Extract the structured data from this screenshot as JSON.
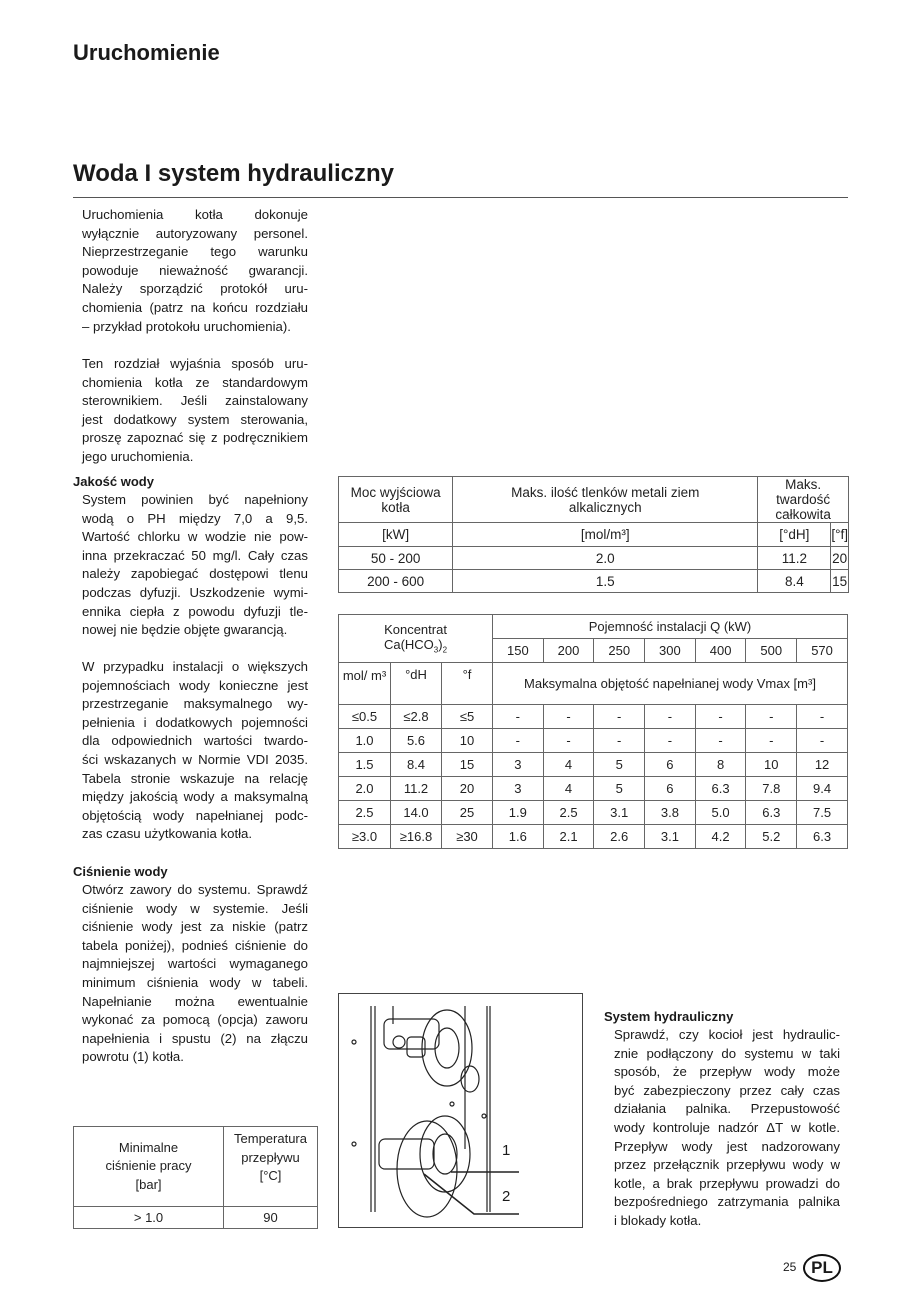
{
  "header": {
    "section_title": "Uruchomienie",
    "page_title": "Woda I system hydrauliczny"
  },
  "left": {
    "intro": [
      "Uruchomienia kotła dokonuje",
      "wyłącznie autoryzowany personel.",
      "Nieprzestrzeganie tego warunku",
      "powoduje nieważność gwarancji.",
      "Należy sporządzić protokół uru-",
      "chomienia (patrz na końcu rozdziału",
      "– przykład protokołu uruchomienia)."
    ],
    "intro2": [
      "Ten rozdział wyjaśnia sposób uru-",
      "chomienia kotła ze standardowym",
      "sterownikiem. Jeśli zainstalowany",
      "jest dodatkowy system sterowania,",
      "proszę zapoznać się z podręcznikiem",
      "jego uruchomienia."
    ],
    "water_quality_heading": "Jakość wody",
    "water_quality": [
      "System powinien być napełniony",
      "wodą o PH między 7,0 a 9,5.",
      "Wartość chlorku w wodzie nie pow-",
      "inna przekraczać 50 mg/l. Cały czas",
      "należy zapobiegać dostępowi tlenu",
      "podczas dyfuzji. Uszkodzenie wymi-",
      "ennika ciepła z powodu dyfuzji tle-",
      "nowej nie będzie objęte gwarancją."
    ],
    "water_quality2": [
      "W przypadku instalacji o większych",
      "pojemnościach wody konieczne jest",
      "przestrzeganie maksymalnego wy-",
      "pełnienia i dodatkowych pojemności",
      "dla odpowiednich wartości twardo-",
      "ści wskazanych w Normie VDI 2035.",
      "Tabela stronie wskazuje na relację",
      "między jakością wody a maksymalną",
      "objętością wody napełnianej podc-",
      "zas czasu użytkowania kotła."
    ],
    "pressure_heading": "Ciśnienie wody",
    "pressure": [
      "Otwórz zawory do systemu. Sprawdź",
      "ciśnienie wody w systemie. Jeśli",
      "ciśnienie wody jest za niskie (patrz",
      "tabela poniżej), podnieś ciśnienie do",
      "najmniejszej wartości wymaganego",
      "minimum ciśnienia wody w tabeli.",
      "Napełnianie można ewentualnie",
      "wykonać za pomocą (opcja) zaworu",
      "napełnienia i spustu (2) na złączu",
      "powrotu (1) kotła."
    ]
  },
  "hardness_table": {
    "h_power": "Moc wyjściowa kotła",
    "h_oxides": "Maks. ilość tlenków metali ziem alkalicznych",
    "h_hardness": "Maks. twardość całkowita",
    "u_power": "[kW]",
    "u_oxides": "[mol/m³]",
    "u_dh": "[°dH]",
    "u_f": "[°f]",
    "rows": [
      [
        "50 - 200",
        "2.0",
        "11.2",
        "20"
      ],
      [
        "200 - 600",
        "1.5",
        "8.4",
        "15"
      ]
    ]
  },
  "volume_table": {
    "h_conc": "Koncentrat",
    "h_conc_formula": "Ca(HCO",
    "h_conc_sub": "3",
    "h_conc_end": ")",
    "h_conc_sub2": "2",
    "h_capacity": "Pojemność instalacji Q (kW)",
    "capacities": [
      "150",
      "200",
      "250",
      "300",
      "400",
      "500",
      "570"
    ],
    "u_mol": "mol/ m³",
    "u_dh": "°dH",
    "u_f": "°f",
    "h_vmax": "Maksymalna objętość napełnianej wody Vmax [m³]",
    "rows": [
      [
        "≤0.5",
        "≤2.8",
        "≤5",
        "-",
        "-",
        "-",
        "-",
        "-",
        "-",
        "-"
      ],
      [
        "1.0",
        "5.6",
        "10",
        "-",
        "-",
        "-",
        "-",
        "-",
        "-",
        "-"
      ],
      [
        "1.5",
        "8.4",
        "15",
        "3",
        "4",
        "5",
        "6",
        "8",
        "10",
        "12"
      ],
      [
        "2.0",
        "11.2",
        "20",
        "3",
        "4",
        "5",
        "6",
        "6.3",
        "7.8",
        "9.4"
      ],
      [
        "2.5",
        "14.0",
        "25",
        "1.9",
        "2.5",
        "3.1",
        "3.8",
        "5.0",
        "6.3",
        "7.5"
      ],
      [
        "≥3.0",
        "≥16.8",
        "≥30",
        "1.6",
        "2.1",
        "2.6",
        "3.1",
        "4.2",
        "5.2",
        "6.3"
      ]
    ]
  },
  "pressure_table": {
    "h_min": "Minimalne ciśnienie pracy [bar]",
    "h_temp": "Temperatura przepływu [°C]",
    "row": [
      "> 1.0",
      "90"
    ]
  },
  "figure": {
    "label1": "1",
    "label2": "2"
  },
  "hydraulic": {
    "heading": "System hydrauliczny",
    "text": [
      "Sprawdź, czy kocioł jest hydraulic-",
      "znie podłączony do systemu w taki",
      "sposób, że przepływ wody może",
      "być zabezpieczony przez cały czas",
      "działania palnika. Przepustowość",
      "wody kontroluje nadzór ΔT w kotle.",
      "Przepływ wody jest nadzorowany",
      "przez przełącznik przepływu wody w",
      "kotle, a brak przepływu prowadzi do",
      "bezpośredniego zatrzymania palnika",
      "i blokady kotła."
    ]
  },
  "footer": {
    "page_number": "25",
    "language_badge": "PL"
  }
}
